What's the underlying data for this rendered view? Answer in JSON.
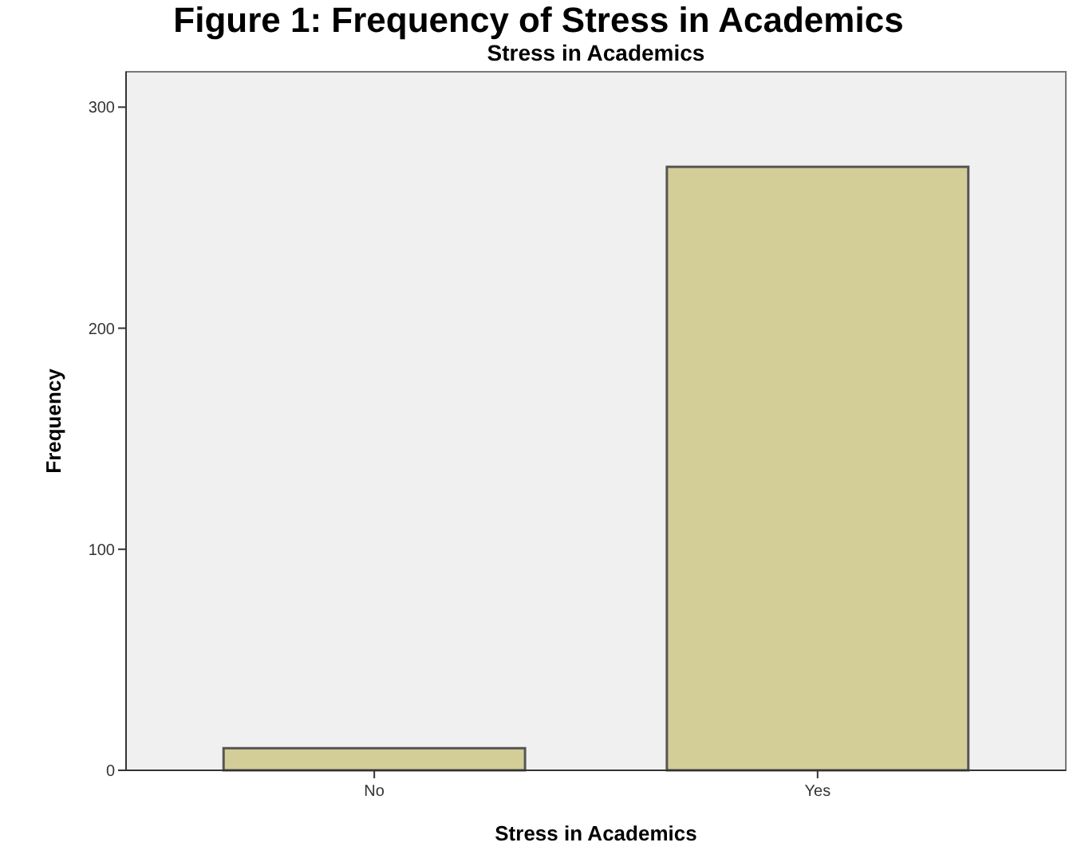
{
  "chart_data": {
    "type": "bar",
    "title": "Figure 1: Frequency of Stress in Academics",
    "subtitle": "Stress in Academics",
    "xlabel": "Stress in Academics",
    "ylabel": "Frequency",
    "categories": [
      "No",
      "Yes"
    ],
    "values": [
      10,
      273
    ],
    "color": "#d3ce98",
    "ylim": [
      0,
      316
    ],
    "yticks": [
      0,
      100,
      200,
      300
    ],
    "grid": false
  }
}
